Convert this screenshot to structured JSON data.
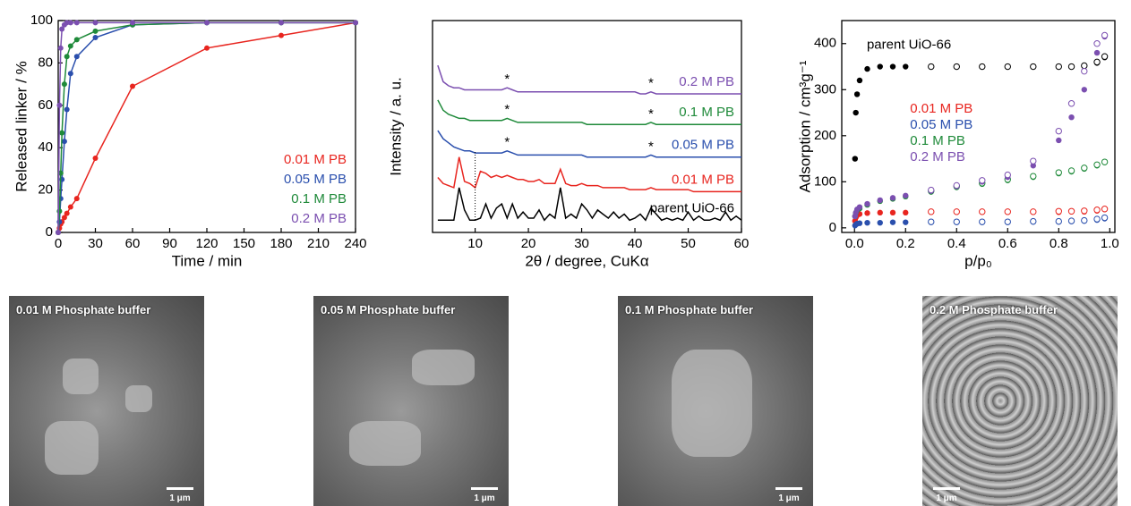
{
  "chart_data": [
    {
      "type": "line",
      "markers": true,
      "xlabel": "Time / min",
      "ylabel": "Released linker / %",
      "xlim": [
        0,
        240
      ],
      "xticks": [
        0,
        30,
        60,
        90,
        120,
        150,
        180,
        210,
        240
      ],
      "ylim": [
        0,
        100
      ],
      "yticks": [
        0,
        20,
        40,
        60,
        80,
        100
      ],
      "legend": "lower right",
      "x": [
        0,
        1,
        2,
        3,
        5,
        7,
        10,
        15,
        30,
        60,
        120,
        180,
        240
      ],
      "series": [
        {
          "name": "0.01 M PB",
          "color": "#e8251f",
          "values": [
            0,
            2,
            4,
            5,
            7,
            9,
            12,
            16,
            35,
            69,
            87,
            93,
            99
          ]
        },
        {
          "name": "0.05 M PB",
          "color": "#2a4fad",
          "values": [
            0,
            5,
            16,
            25,
            43,
            58,
            75,
            83,
            92,
            98,
            99,
            99,
            99
          ]
        },
        {
          "name": "0.1 M PB",
          "color": "#1f8a3a",
          "values": [
            0,
            10,
            28,
            47,
            70,
            83,
            88,
            91,
            95,
            98,
            99,
            99,
            99
          ]
        },
        {
          "name": "0.2 M PB",
          "color": "#7b4fb0",
          "values": [
            0,
            60,
            87,
            96,
            98,
            99,
            99,
            99,
            99,
            99,
            99,
            99,
            99
          ]
        }
      ]
    },
    {
      "type": "line",
      "markers": false,
      "labels": "inline",
      "xlabel": "2θ / degree, CuKα",
      "ylabel": "Intensity / a. u.",
      "xlim": [
        2,
        60
      ],
      "xticks": [
        10,
        20,
        30,
        40,
        50,
        60
      ],
      "ylim": [
        -4,
        100
      ],
      "x": [
        3,
        4,
        5,
        6,
        7,
        8,
        9,
        10,
        11,
        12,
        13,
        14,
        15,
        16,
        17,
        18,
        19,
        20,
        21,
        22,
        23,
        24,
        25,
        26,
        27,
        28,
        29,
        30,
        31,
        32,
        33,
        34,
        35,
        36,
        37,
        38,
        39,
        40,
        41,
        42,
        43,
        44,
        45,
        46,
        47,
        48,
        49,
        50,
        51,
        52,
        53,
        54,
        55,
        56,
        57,
        58,
        59,
        60
      ],
      "series": [
        {
          "name": "parent UiO-66",
          "color": "#000000",
          "values": [
            2,
            2,
            2,
            2,
            18,
            7,
            2,
            2,
            3,
            10,
            3,
            8,
            10,
            3,
            10,
            3,
            6,
            3,
            3,
            7,
            2,
            5,
            3,
            18,
            3,
            5,
            3,
            10,
            7,
            3,
            7,
            5,
            3,
            6,
            3,
            5,
            2,
            3,
            5,
            2,
            8,
            5,
            2,
            3,
            2,
            3,
            2,
            6,
            2,
            4,
            2,
            2,
            3,
            2,
            6,
            2,
            4,
            2
          ]
        },
        {
          "name": "0.01 M PB",
          "color": "#e8251f",
          "values": [
            23,
            20,
            19,
            18,
            33,
            21,
            20,
            18,
            26,
            25,
            23,
            24,
            23,
            24,
            23,
            22,
            22,
            21,
            21,
            22,
            20,
            20,
            20,
            27,
            20,
            19,
            19,
            20,
            19,
            19,
            19,
            18,
            18,
            18,
            18,
            18,
            17,
            17,
            17,
            17,
            18,
            17,
            17,
            17,
            17,
            17,
            17,
            17,
            16,
            16,
            16,
            16,
            16,
            16,
            16,
            16,
            16,
            16
          ]
        },
        {
          "name": "0.05 M PB",
          "color": "#2a4fad",
          "values": [
            46,
            42,
            40,
            38,
            37,
            36,
            36,
            35,
            35,
            35,
            35,
            35,
            35,
            36,
            35,
            34,
            34,
            34,
            34,
            34,
            34,
            34,
            34,
            34,
            34,
            34,
            34,
            34,
            33,
            33,
            33,
            33,
            33,
            33,
            33,
            33,
            33,
            33,
            33,
            33,
            34,
            33,
            33,
            33,
            33,
            33,
            33,
            33,
            33,
            33,
            33,
            33,
            33,
            33,
            33,
            33,
            33,
            33
          ]
        },
        {
          "name": "0.1 M PB",
          "color": "#1f8a3a",
          "values": [
            61,
            56,
            54,
            53,
            52,
            52,
            51,
            51,
            51,
            51,
            51,
            51,
            51,
            52,
            51,
            50,
            50,
            50,
            50,
            50,
            50,
            50,
            50,
            50,
            50,
            50,
            50,
            50,
            49,
            49,
            49,
            49,
            49,
            49,
            49,
            49,
            49,
            49,
            49,
            49,
            50,
            49,
            49,
            49,
            49,
            49,
            49,
            49,
            49,
            49,
            49,
            49,
            49,
            49,
            49,
            49,
            49,
            49
          ]
        },
        {
          "name": "0.2 M PB",
          "color": "#7b4fb0",
          "values": [
            78,
            70,
            68,
            67,
            67,
            66,
            66,
            66,
            66,
            66,
            66,
            66,
            66,
            67,
            66,
            65,
            65,
            65,
            65,
            65,
            65,
            65,
            65,
            65,
            65,
            65,
            65,
            65,
            65,
            65,
            65,
            65,
            65,
            65,
            65,
            65,
            65,
            65,
            64,
            64,
            65,
            64,
            64,
            64,
            64,
            64,
            64,
            64,
            64,
            64,
            64,
            64,
            64,
            64,
            64,
            64,
            64,
            64
          ]
        }
      ],
      "annotations": [
        {
          "text": "*",
          "x": 16,
          "y": 71
        },
        {
          "text": "*",
          "x": 16,
          "y": 56
        },
        {
          "text": "*",
          "x": 16,
          "y": 40
        },
        {
          "text": "*",
          "x": 43,
          "y": 69
        },
        {
          "text": "*",
          "x": 43,
          "y": 54
        },
        {
          "text": "*",
          "x": 43,
          "y": 38
        }
      ]
    },
    {
      "type": "scatter",
      "xlabel": "p/p₀",
      "ylabel": "Adsorption / cm³g⁻¹",
      "xlim": [
        -0.05,
        1.02
      ],
      "xticks": [
        {
          "value": 0,
          "label": "0.0"
        },
        0.2,
        0.4,
        0.6,
        0.8,
        {
          "value": 1,
          "label": "1.0"
        }
      ],
      "ylim": [
        -10,
        450
      ],
      "yticks": [
        0,
        100,
        200,
        300,
        400
      ],
      "legend": "center",
      "x": [
        0.002,
        0.005,
        0.01,
        0.02,
        0.05,
        0.1,
        0.15,
        0.2,
        0.3,
        0.4,
        0.5,
        0.6,
        0.7,
        0.8,
        0.85,
        0.9,
        0.95,
        0.98
      ],
      "series": [
        {
          "name": "parent UiO-66",
          "color": "#000000",
          "label_inline": true,
          "values": [
            150,
            250,
            290,
            320,
            345,
            350,
            350,
            350,
            350,
            350,
            350,
            350,
            350,
            350,
            350,
            352,
            358,
            370
          ],
          "desorption": [
            null,
            null,
            null,
            null,
            null,
            null,
            null,
            null,
            350,
            350,
            350,
            350,
            350,
            350,
            350,
            352,
            360,
            372
          ]
        },
        {
          "name": "0.01 M PB",
          "color": "#e8251f",
          "values": [
            15,
            22,
            27,
            30,
            32,
            33,
            33,
            33,
            34,
            34,
            34,
            34,
            34,
            34,
            35,
            35,
            37,
            40
          ],
          "desorption": [
            null,
            null,
            null,
            null,
            null,
            null,
            null,
            null,
            35,
            35,
            35,
            35,
            35,
            36,
            36,
            37,
            39,
            41
          ]
        },
        {
          "name": "0.05 M PB",
          "color": "#2a4fad",
          "values": [
            5,
            7,
            9,
            10,
            11,
            11,
            12,
            12,
            12,
            12,
            12,
            12,
            13,
            13,
            14,
            15,
            17,
            20
          ],
          "desorption": [
            null,
            null,
            null,
            null,
            null,
            null,
            null,
            null,
            13,
            13,
            13,
            13,
            14,
            14,
            15,
            16,
            19,
            22
          ]
        },
        {
          "name": "0.1 M PB",
          "color": "#1f8a3a",
          "values": [
            25,
            32,
            38,
            42,
            50,
            58,
            63,
            68,
            78,
            88,
            95,
            103,
            110,
            118,
            122,
            128,
            135,
            142
          ],
          "desorption": [
            null,
            null,
            null,
            null,
            null,
            null,
            null,
            null,
            80,
            90,
            97,
            105,
            112,
            120,
            124,
            130,
            137,
            143
          ]
        },
        {
          "name": "0.2 M PB",
          "color": "#7b4fb0",
          "values": [
            25,
            33,
            40,
            45,
            52,
            60,
            65,
            70,
            80,
            90,
            100,
            110,
            135,
            190,
            240,
            300,
            380,
            415
          ],
          "desorption": [
            null,
            null,
            null,
            null,
            null,
            null,
            null,
            null,
            82,
            92,
            103,
            115,
            145,
            210,
            270,
            340,
            400,
            418
          ]
        }
      ]
    }
  ],
  "images": [
    {
      "label": "0.01 M Phosphate buffer",
      "scale": "1 μm"
    },
    {
      "label": "0.05 M Phosphate buffer",
      "scale": "1 μm"
    },
    {
      "label": "0.1 M Phosphate buffer",
      "scale": "1 μm"
    },
    {
      "label": "0.2 M Phosphate buffer",
      "scale": "1 μm"
    }
  ]
}
